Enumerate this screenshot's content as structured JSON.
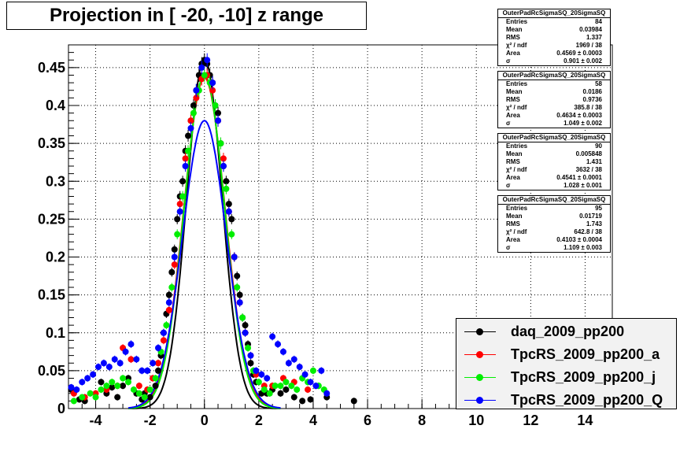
{
  "title": "Projection in [ -20, -10] z range",
  "stats_boxes": [
    {
      "name": "OuterPadRcSigmaSQ_20SigmaSQ",
      "rows": [
        {
          "label": "Entries",
          "value": "84"
        },
        {
          "label": "Mean",
          "value": "0.03984"
        },
        {
          "label": "RMS",
          "value": "1.337"
        },
        {
          "label": "χ² / ndf",
          "value": "1969 / 38"
        },
        {
          "label": "Area",
          "value": "0.4569 ± 0.0003"
        },
        {
          "label": "σ",
          "value": "0.901 ± 0.002"
        }
      ]
    },
    {
      "name": "OuterPadRcSigmaSQ_20SigmaSQ",
      "rows": [
        {
          "label": "Entries",
          "value": "58"
        },
        {
          "label": "Mean",
          "value": "0.0186"
        },
        {
          "label": "RMS",
          "value": "0.9736"
        },
        {
          "label": "χ² / ndf",
          "value": "385.8 / 38"
        },
        {
          "label": "Area",
          "value": "0.4634 ± 0.0003"
        },
        {
          "label": "σ",
          "value": "1.049 ± 0.002"
        }
      ]
    },
    {
      "name": "OuterPadRcSigmaSQ_20SigmaSQ",
      "rows": [
        {
          "label": "Entries",
          "value": "90"
        },
        {
          "label": "Mean",
          "value": "0.005848"
        },
        {
          "label": "RMS",
          "value": "1.431"
        },
        {
          "label": "χ² / ndf",
          "value": "3632 / 38"
        },
        {
          "label": "Area",
          "value": "0.4541 ± 0.0001"
        },
        {
          "label": "σ",
          "value": "1.028 ± 0.001"
        }
      ]
    },
    {
      "name": "OuterPadRcSigmaSQ_20SigmaSQ",
      "rows": [
        {
          "label": "Entries",
          "value": "95"
        },
        {
          "label": "Mean",
          "value": "0.01719"
        },
        {
          "label": "RMS",
          "value": "1.743"
        },
        {
          "label": "χ² / ndf",
          "value": "642.8 / 38"
        },
        {
          "label": "Area",
          "value": "0.4103 ± 0.0004"
        },
        {
          "label": "σ",
          "value": "1.109 ± 0.003"
        }
      ]
    }
  ],
  "chart_data": {
    "type": "scatter",
    "title": "Projection in [ -20, -10] z range",
    "xlabel": "",
    "ylabel": "",
    "xlim": [
      -5,
      15
    ],
    "ylim": [
      0,
      0.48
    ],
    "x_ticks": [
      -4,
      -2,
      0,
      2,
      4,
      6,
      8,
      10,
      12,
      14
    ],
    "y_ticks": [
      0,
      0.05,
      0.1,
      0.15,
      0.2,
      0.25,
      0.3,
      0.35,
      0.4,
      0.45
    ],
    "x_tick_labels": [
      "-4",
      "-2",
      "0",
      "2",
      "4",
      "6",
      "8",
      "10",
      "12",
      "14"
    ],
    "y_tick_labels": [
      "0",
      "0.05",
      "0.1",
      "0.15",
      "0.2",
      "0.25",
      "0.3",
      "0.35",
      "0.4",
      "0.45"
    ],
    "grid": true,
    "legend_position": "bottom-right",
    "series": [
      {
        "name": "daq_2009_pp200",
        "color": "#000000",
        "fit": {
          "amplitude": 0.462,
          "sigma": 0.901
        },
        "points": [
          [
            -4.9,
            0.025
          ],
          [
            -4.6,
            0.012
          ],
          [
            -4.4,
            0.01
          ],
          [
            -3.8,
            0.035
          ],
          [
            -3.6,
            0.02
          ],
          [
            -3.4,
            0.028
          ],
          [
            -3.2,
            0.015
          ],
          [
            -3.0,
            0.03
          ],
          [
            -2.8,
            0.04
          ],
          [
            -2.5,
            0.02
          ],
          [
            -2.3,
            0.012
          ],
          [
            -2.2,
            0.02
          ],
          [
            -2.0,
            0.015
          ],
          [
            -1.8,
            0.03
          ],
          [
            -1.7,
            0.05
          ],
          [
            -1.6,
            0.07
          ],
          [
            -1.5,
            0.1
          ],
          [
            -1.4,
            0.125
          ],
          [
            -1.3,
            0.15
          ],
          [
            -1.2,
            0.18
          ],
          [
            -1.1,
            0.21
          ],
          [
            -1.0,
            0.25
          ],
          [
            -0.9,
            0.28
          ],
          [
            -0.8,
            0.3
          ],
          [
            -0.7,
            0.34
          ],
          [
            -0.6,
            0.36
          ],
          [
            -0.5,
            0.38
          ],
          [
            -0.4,
            0.4
          ],
          [
            -0.3,
            0.42
          ],
          [
            -0.2,
            0.44
          ],
          [
            -0.1,
            0.455
          ],
          [
            0.0,
            0.46
          ],
          [
            0.1,
            0.455
          ],
          [
            0.2,
            0.44
          ],
          [
            0.3,
            0.43
          ],
          [
            0.4,
            0.4
          ],
          [
            0.5,
            0.39
          ],
          [
            0.6,
            0.35
          ],
          [
            0.7,
            0.32
          ],
          [
            0.8,
            0.3
          ],
          [
            0.9,
            0.27
          ],
          [
            1.0,
            0.25
          ],
          [
            1.1,
            0.2
          ],
          [
            1.2,
            0.175
          ],
          [
            1.3,
            0.15
          ],
          [
            1.4,
            0.12
          ],
          [
            1.5,
            0.11
          ],
          [
            1.6,
            0.085
          ],
          [
            1.7,
            0.06
          ],
          [
            1.8,
            0.045
          ],
          [
            1.9,
            0.035
          ],
          [
            2.1,
            0.02
          ],
          [
            2.3,
            0.02
          ],
          [
            2.5,
            0.025
          ],
          [
            2.8,
            0.02
          ],
          [
            3.0,
            0.025
          ],
          [
            3.3,
            0.015
          ],
          [
            3.6,
            0.01
          ],
          [
            3.9,
            0.012
          ],
          [
            4.5,
            0.015
          ],
          [
            5.5,
            0.01
          ]
        ]
      },
      {
        "name": "TpcRS_2009_pp200_a",
        "color": "#ff0000",
        "fit": {
          "amplitude": 0.437,
          "sigma": 1.049
        },
        "points": [
          [
            -4.8,
            0.02
          ],
          [
            -4.4,
            0.015
          ],
          [
            -4.0,
            0.02
          ],
          [
            -3.6,
            0.025
          ],
          [
            -3.2,
            0.03
          ],
          [
            -3.0,
            0.08
          ],
          [
            -2.7,
            0.065
          ],
          [
            -2.4,
            0.03
          ],
          [
            -2.1,
            0.025
          ],
          [
            -1.9,
            0.04
          ],
          [
            -1.7,
            0.06
          ],
          [
            -1.5,
            0.09
          ],
          [
            -1.3,
            0.13
          ],
          [
            -1.1,
            0.19
          ],
          [
            -0.9,
            0.27
          ],
          [
            -0.7,
            0.33
          ],
          [
            -0.5,
            0.38
          ],
          [
            -0.3,
            0.41
          ],
          [
            -0.1,
            0.435
          ],
          [
            0.1,
            0.44
          ],
          [
            0.3,
            0.42
          ],
          [
            0.5,
            0.38
          ],
          [
            0.7,
            0.33
          ],
          [
            0.9,
            0.26
          ],
          [
            1.1,
            0.2
          ],
          [
            1.3,
            0.14
          ],
          [
            1.5,
            0.1
          ],
          [
            1.7,
            0.07
          ],
          [
            1.9,
            0.045
          ],
          [
            2.2,
            0.03
          ],
          [
            2.5,
            0.03
          ],
          [
            2.9,
            0.04
          ],
          [
            3.3,
            0.035
          ],
          [
            3.8,
            0.025
          ]
        ]
      },
      {
        "name": "TpcRS_2009_pp200_j",
        "color": "#00ee00",
        "fit": {
          "amplitude": 0.44,
          "sigma": 1.028
        },
        "points": [
          [
            -4.8,
            0.01
          ],
          [
            -4.5,
            0.015
          ],
          [
            -4.2,
            0.02
          ],
          [
            -4.0,
            0.015
          ],
          [
            -3.8,
            0.025
          ],
          [
            -3.6,
            0.03
          ],
          [
            -3.4,
            0.035
          ],
          [
            -3.2,
            0.03
          ],
          [
            -3.0,
            0.04
          ],
          [
            -2.8,
            0.035
          ],
          [
            -2.6,
            0.025
          ],
          [
            -2.4,
            0.02
          ],
          [
            -2.2,
            0.015
          ],
          [
            -2.0,
            0.025
          ],
          [
            -1.8,
            0.04
          ],
          [
            -1.6,
            0.075
          ],
          [
            -1.4,
            0.11
          ],
          [
            -1.2,
            0.16
          ],
          [
            -1.0,
            0.23
          ],
          [
            -0.8,
            0.28
          ],
          [
            -0.6,
            0.34
          ],
          [
            -0.4,
            0.39
          ],
          [
            -0.2,
            0.42
          ],
          [
            0.0,
            0.44
          ],
          [
            0.2,
            0.43
          ],
          [
            0.4,
            0.4
          ],
          [
            0.6,
            0.35
          ],
          [
            0.8,
            0.29
          ],
          [
            1.0,
            0.23
          ],
          [
            1.2,
            0.16
          ],
          [
            1.4,
            0.12
          ],
          [
            1.6,
            0.08
          ],
          [
            1.8,
            0.05
          ],
          [
            2.0,
            0.035
          ],
          [
            2.2,
            0.025
          ],
          [
            2.4,
            0.02
          ],
          [
            2.6,
            0.03
          ],
          [
            2.8,
            0.03
          ],
          [
            3.0,
            0.035
          ],
          [
            3.2,
            0.03
          ],
          [
            3.4,
            0.025
          ],
          [
            3.6,
            0.04
          ],
          [
            3.8,
            0.035
          ],
          [
            4.0,
            0.05
          ],
          [
            4.2,
            0.03
          ],
          [
            4.4,
            0.025
          ]
        ]
      },
      {
        "name": "TpcRS_2009_pp200_Q",
        "color": "#0000ff",
        "fit": {
          "amplitude": 0.38,
          "sigma": 1.109
        },
        "points": [
          [
            -4.9,
            0.028
          ],
          [
            -4.7,
            0.025
          ],
          [
            -4.5,
            0.035
          ],
          [
            -4.3,
            0.04
          ],
          [
            -4.1,
            0.045
          ],
          [
            -3.9,
            0.055
          ],
          [
            -3.7,
            0.06
          ],
          [
            -3.5,
            0.055
          ],
          [
            -3.3,
            0.065
          ],
          [
            -3.1,
            0.06
          ],
          [
            -2.9,
            0.075
          ],
          [
            -2.7,
            0.085
          ],
          [
            -2.5,
            0.065
          ],
          [
            -2.3,
            0.05
          ],
          [
            -2.1,
            0.05
          ],
          [
            -1.9,
            0.06
          ],
          [
            -1.7,
            0.08
          ],
          [
            -1.5,
            0.1
          ],
          [
            -1.3,
            0.14
          ],
          [
            -1.1,
            0.2
          ],
          [
            -0.9,
            0.26
          ],
          [
            -0.7,
            0.32
          ],
          [
            -0.5,
            0.37
          ],
          [
            -0.3,
            0.42
          ],
          [
            -0.1,
            0.45
          ],
          [
            0.1,
            0.46
          ],
          [
            0.3,
            0.43
          ],
          [
            0.5,
            0.38
          ],
          [
            0.7,
            0.32
          ],
          [
            0.9,
            0.26
          ],
          [
            1.1,
            0.2
          ],
          [
            1.3,
            0.14
          ],
          [
            1.5,
            0.1
          ],
          [
            1.7,
            0.07
          ],
          [
            1.9,
            0.05
          ],
          [
            2.1,
            0.045
          ],
          [
            2.3,
            0.04
          ],
          [
            2.5,
            0.095
          ],
          [
            2.7,
            0.085
          ],
          [
            2.9,
            0.075
          ],
          [
            3.1,
            0.06
          ],
          [
            3.3,
            0.065
          ],
          [
            3.5,
            0.055
          ],
          [
            3.7,
            0.045
          ],
          [
            3.9,
            0.035
          ],
          [
            4.1,
            0.03
          ],
          [
            4.3,
            0.05
          ],
          [
            4.5,
            0.02
          ]
        ]
      }
    ]
  }
}
